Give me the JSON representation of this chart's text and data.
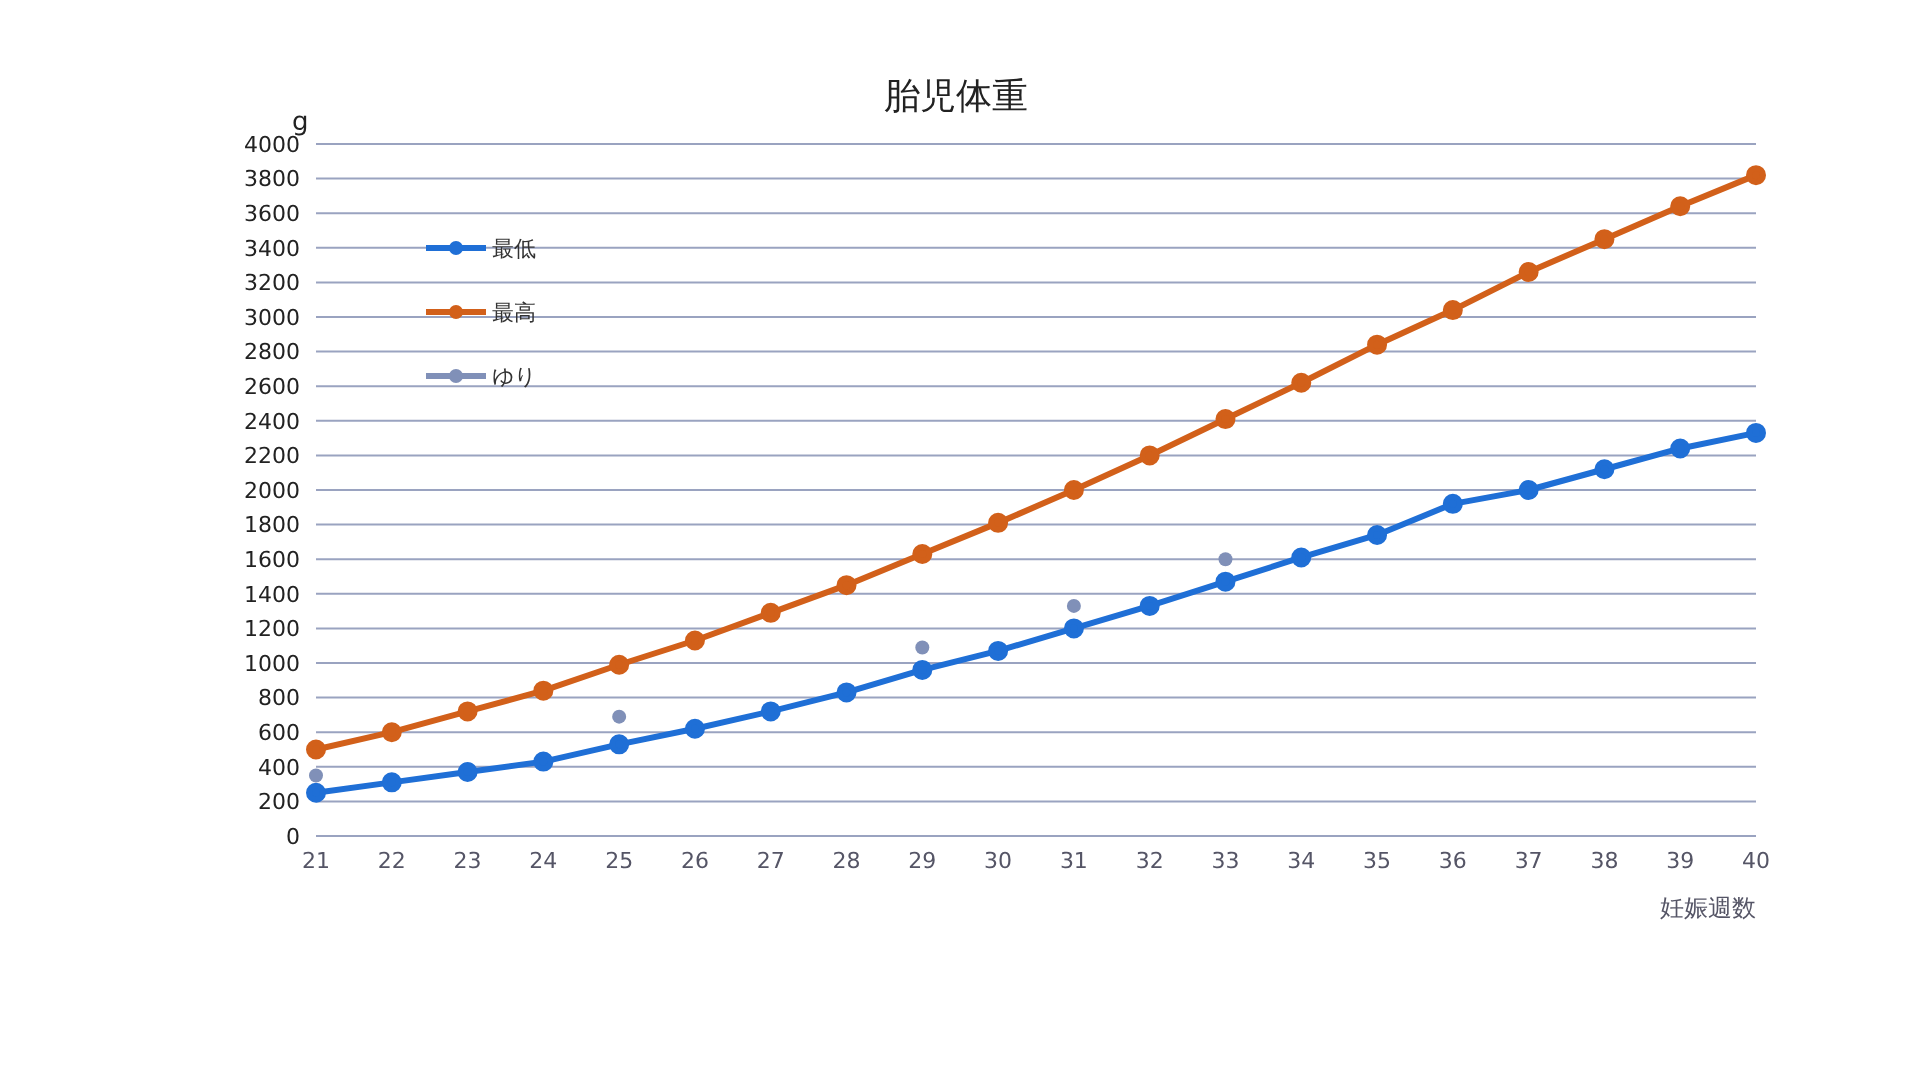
{
  "chart_data": {
    "type": "line",
    "title": "胎児体重",
    "ylabel": "g",
    "xlabel": "妊娠週数",
    "categories": [
      "21",
      "22",
      "23",
      "24",
      "25",
      "26",
      "27",
      "28",
      "29",
      "30",
      "31",
      "32",
      "33",
      "34",
      "35",
      "36",
      "37",
      "38",
      "39",
      "40"
    ],
    "series": [
      {
        "name": "最低",
        "color": "#1f6fd6",
        "values": [
          250,
          310,
          370,
          430,
          530,
          620,
          720,
          830,
          960,
          1070,
          1200,
          1330,
          1470,
          1610,
          1740,
          1920,
          2000,
          2120,
          2240,
          2330
        ]
      },
      {
        "name": "最高",
        "color": "#d2601a",
        "values": [
          500,
          600,
          720,
          840,
          990,
          1130,
          1290,
          1450,
          1630,
          1810,
          2000,
          2200,
          2410,
          2620,
          2840,
          3040,
          3260,
          3450,
          3640,
          3820
        ]
      },
      {
        "name": "ゆり",
        "type": "scatter",
        "color": "#8090b8",
        "values": [
          350,
          null,
          null,
          null,
          690,
          null,
          null,
          null,
          1090,
          null,
          1330,
          null,
          1600,
          null,
          null,
          null,
          null,
          null,
          null,
          null
        ]
      }
    ],
    "ylim": [
      0,
      4000
    ],
    "yticks": [
      0,
      200,
      400,
      600,
      800,
      1000,
      1200,
      1400,
      1600,
      1800,
      2000,
      2200,
      2400,
      2600,
      2800,
      3000,
      3200,
      3400,
      3600,
      3800,
      4000
    ],
    "grid": "y",
    "legend": "top left",
    "marker": "circle"
  }
}
